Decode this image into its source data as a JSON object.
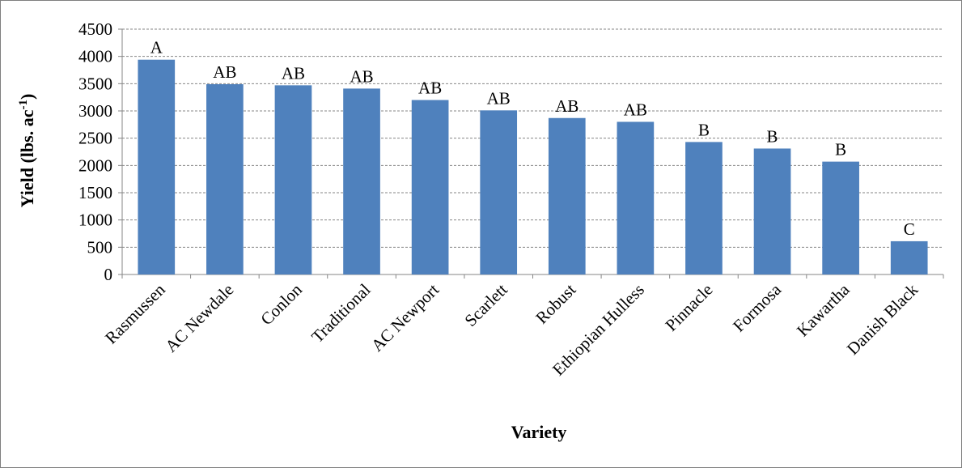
{
  "chart_data": {
    "type": "bar",
    "categories": [
      "Rasmussen",
      "AC Newdale",
      "Conlon",
      "Traditional",
      "AC Newport",
      "Scarlett",
      "Robust",
      "Ethiopian Hulless",
      "Pinnacle",
      "Formosa",
      "Kawartha",
      "Danish Black"
    ],
    "values": [
      3940,
      3490,
      3470,
      3410,
      3200,
      3010,
      2870,
      2800,
      2430,
      2310,
      2070,
      610
    ],
    "significance_letters": [
      "A",
      "AB",
      "AB",
      "AB",
      "AB",
      "AB",
      "AB",
      "AB",
      "B",
      "B",
      "B",
      "C"
    ],
    "title": "",
    "xlabel": "Variety",
    "ylabel": "Yield (lbs. ac",
    "ylabel_superscript": "-1",
    "ylabel_close": ")",
    "ylim": [
      0,
      4500
    ],
    "yticks": [
      0,
      500,
      1000,
      1500,
      2000,
      2500,
      3000,
      3500,
      4000,
      4500
    ],
    "grid": true,
    "legend": "none",
    "bar_color": "#4f81bd"
  }
}
